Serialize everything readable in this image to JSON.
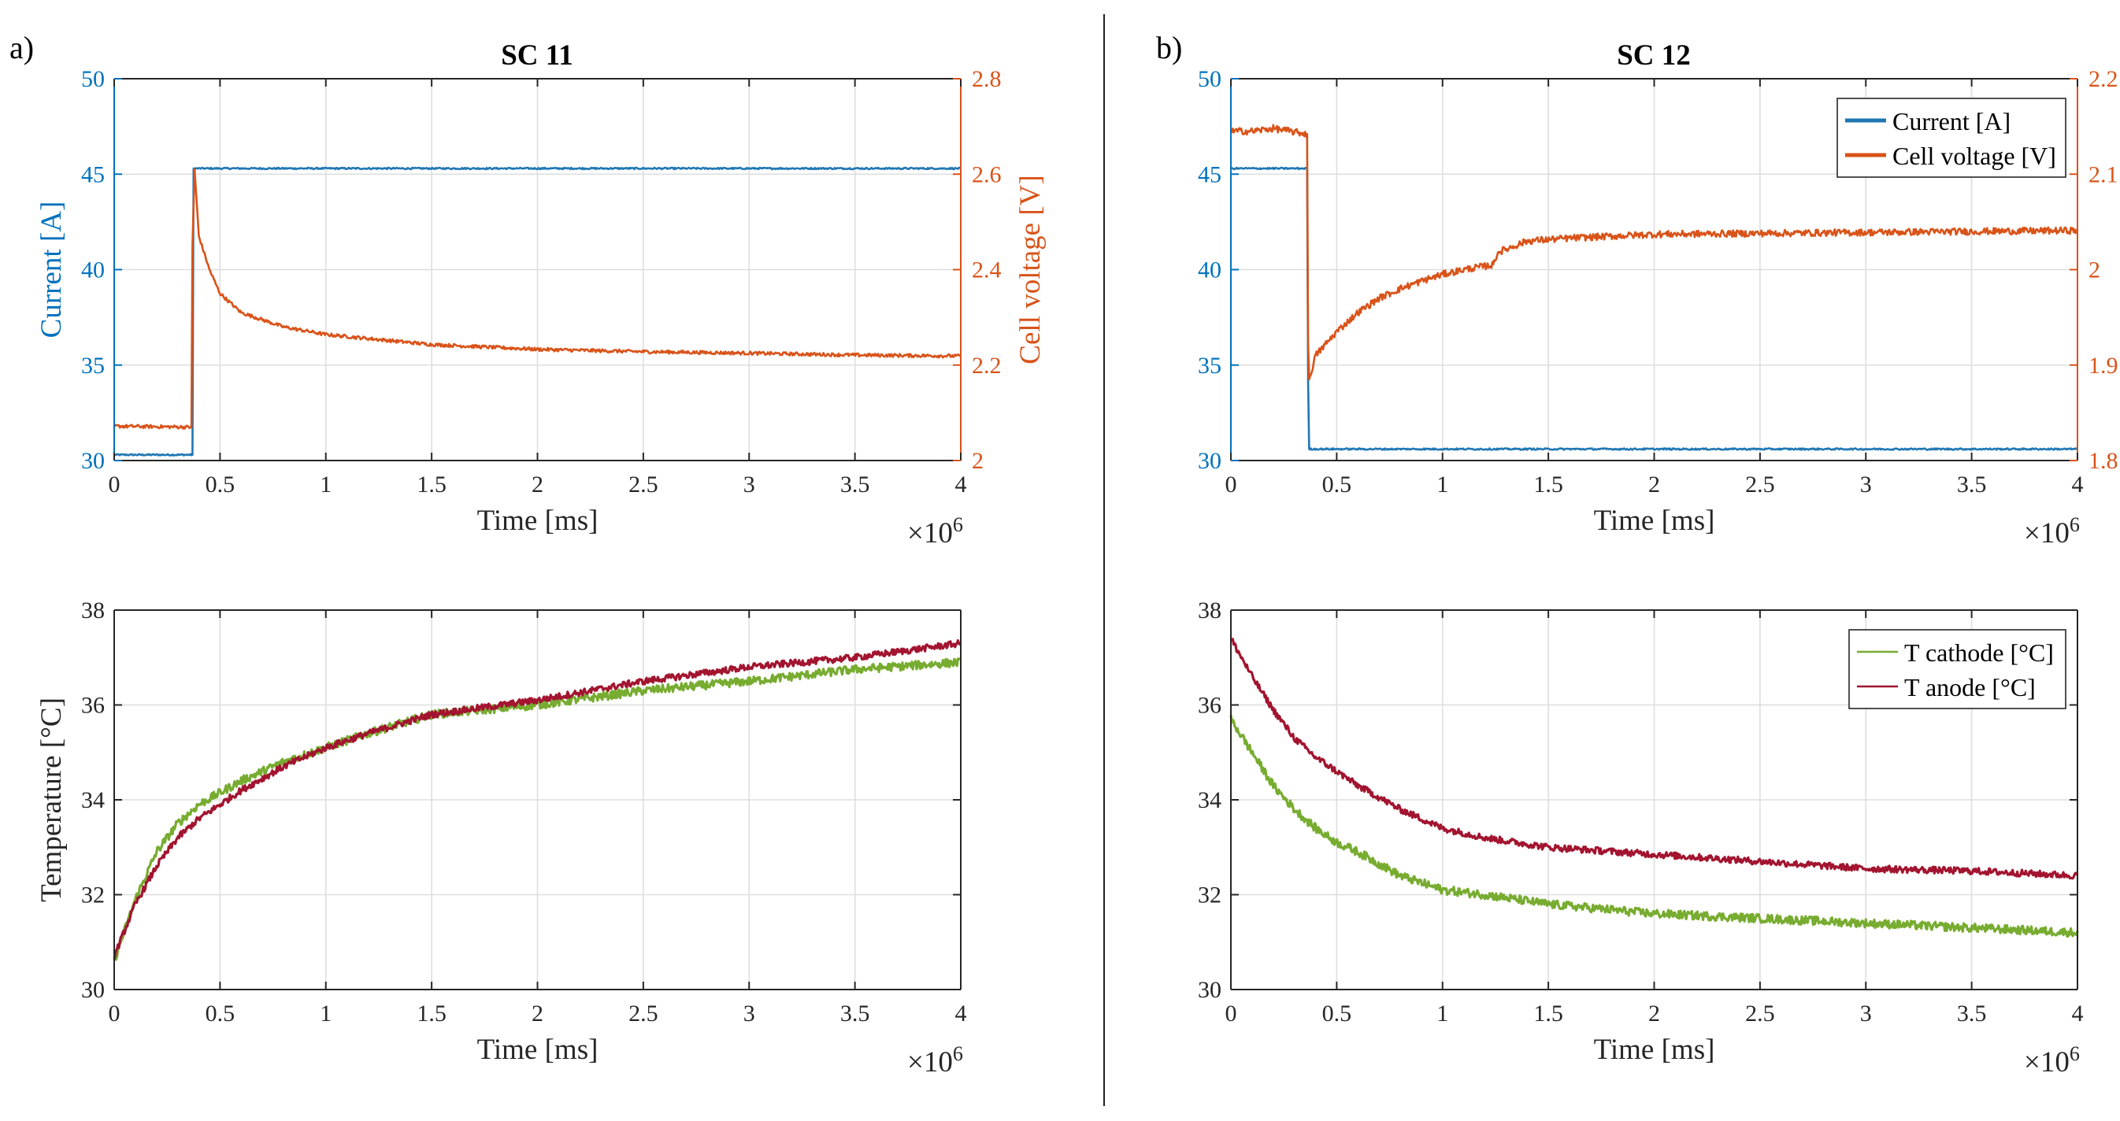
{
  "panel_labels": [
    "a)",
    "b)"
  ],
  "colors": {
    "current": "#1f77b4",
    "voltage": "#d95319",
    "t_cathode": "#77ac30",
    "t_anode": "#a2142f",
    "left_axis_top": "#0072bd",
    "right_axis_top": "#d95319",
    "axis": "#262626"
  },
  "chart_data": [
    {
      "id": "sc11-electrical",
      "type": "line",
      "title": "SC 11",
      "xlabel": "Time [ms]",
      "x_exponent_label": "×10",
      "x_exponent": "6",
      "ylabel": "Current [A]",
      "ylabel_right": "Cell voltage [V]",
      "xlim": [
        0,
        4
      ],
      "ylim": [
        30,
        50
      ],
      "ylim_right": [
        2,
        2.8
      ],
      "xticks": [
        "0",
        "0.5",
        "1",
        "1.5",
        "2",
        "2.5",
        "3",
        "3.5",
        "4"
      ],
      "yticks": [
        "30",
        "35",
        "40",
        "45",
        "50"
      ],
      "yticks_right": [
        "2",
        "2.2",
        "2.4",
        "2.6",
        "2.8"
      ],
      "grid": true,
      "series": [
        {
          "key": "current",
          "axis": "left",
          "color": "#1f77b4",
          "x": [
            0,
            0.37,
            0.375,
            4.0
          ],
          "y": [
            30.3,
            30.3,
            45.3,
            45.3
          ]
        },
        {
          "key": "voltage",
          "axis": "right",
          "color": "#d95319",
          "x": [
            0,
            0.365,
            0.37,
            0.38,
            0.4,
            0.45,
            0.5,
            0.6,
            0.8,
            1.0,
            1.5,
            2.0,
            2.5,
            3.0,
            3.5,
            4.0
          ],
          "y": [
            2.072,
            2.07,
            2.45,
            2.61,
            2.47,
            2.4,
            2.35,
            2.31,
            2.28,
            2.264,
            2.243,
            2.233,
            2.228,
            2.225,
            2.221,
            2.219
          ]
        }
      ]
    },
    {
      "id": "sc11-thermal",
      "type": "line",
      "title": "",
      "xlabel": "Time [ms]",
      "x_exponent_label": "×10",
      "x_exponent": "6",
      "ylabel": "Temperature [°C]",
      "xlim": [
        0,
        4
      ],
      "ylim": [
        30,
        38
      ],
      "xticks": [
        "0",
        "0.5",
        "1",
        "1.5",
        "2",
        "2.5",
        "3",
        "3.5",
        "4"
      ],
      "yticks": [
        "30",
        "32",
        "34",
        "36",
        "38"
      ],
      "grid": true,
      "series": [
        {
          "key": "t_cathode",
          "color": "#77ac30",
          "x": [
            0,
            0.1,
            0.2,
            0.3,
            0.4,
            0.6,
            0.8,
            1.0,
            1.2,
            1.5,
            2.0,
            2.5,
            3.0,
            3.5,
            4.0
          ],
          "y": [
            30.6,
            31.9,
            32.9,
            33.5,
            33.9,
            34.4,
            34.8,
            35.1,
            35.4,
            35.8,
            36.0,
            36.3,
            36.5,
            36.75,
            36.9
          ]
        },
        {
          "key": "t_anode",
          "color": "#a2142f",
          "x": [
            0,
            0.1,
            0.2,
            0.3,
            0.4,
            0.6,
            0.8,
            1.0,
            1.2,
            1.5,
            2.0,
            2.5,
            3.0,
            3.5,
            4.0
          ],
          "y": [
            30.7,
            31.8,
            32.6,
            33.2,
            33.6,
            34.2,
            34.7,
            35.1,
            35.4,
            35.8,
            36.1,
            36.5,
            36.8,
            37.0,
            37.3
          ]
        }
      ]
    },
    {
      "id": "sc12-electrical",
      "type": "line",
      "title": "SC 12",
      "xlabel": "Time [ms]",
      "x_exponent_label": "×10",
      "x_exponent": "6",
      "ylabel": "",
      "ylabel_right": "",
      "xlim": [
        0,
        4
      ],
      "ylim": [
        30,
        50
      ],
      "ylim_right": [
        1.8,
        2.2
      ],
      "xticks": [
        "0",
        "0.5",
        "1",
        "1.5",
        "2",
        "2.5",
        "3",
        "3.5",
        "4"
      ],
      "yticks": [
        "30",
        "35",
        "40",
        "45",
        "50"
      ],
      "yticks_right": [
        "1.8",
        "1.9",
        "2",
        "2.1",
        "2.2"
      ],
      "grid": true,
      "legend": {
        "placement": "top-right",
        "entries": [
          "Current [A]",
          "Cell voltage [V]"
        ]
      },
      "series": [
        {
          "key": "current",
          "name": "Current [A]",
          "axis": "left",
          "color": "#1f77b4",
          "x": [
            0,
            0.36,
            0.365,
            0.37,
            4.0
          ],
          "y": [
            45.3,
            45.3,
            34.0,
            30.6,
            30.6
          ]
        },
        {
          "key": "voltage",
          "name": "Cell voltage [V]",
          "axis": "right",
          "color": "#d95319",
          "x": [
            0,
            0.1,
            0.2,
            0.36,
            0.365,
            0.37,
            0.4,
            0.5,
            0.6,
            0.7,
            0.8,
            0.9,
            1.0,
            1.1,
            1.24,
            1.26,
            1.4,
            1.6,
            2.0,
            2.5,
            3.0,
            3.5,
            4.0
          ],
          "y": [
            2.145,
            2.145,
            2.148,
            2.142,
            1.92,
            1.885,
            1.91,
            1.935,
            1.955,
            1.97,
            1.98,
            1.988,
            1.995,
            2.0,
            2.005,
            2.018,
            2.03,
            2.033,
            2.037,
            2.038,
            2.039,
            2.04,
            2.041
          ]
        }
      ]
    },
    {
      "id": "sc12-thermal",
      "type": "line",
      "title": "",
      "xlabel": "Time [ms]",
      "x_exponent_label": "×10",
      "x_exponent": "6",
      "ylabel": "",
      "xlim": [
        0,
        4
      ],
      "ylim": [
        30,
        38
      ],
      "xticks": [
        "0",
        "0.5",
        "1",
        "1.5",
        "2",
        "2.5",
        "3",
        "3.5",
        "4"
      ],
      "yticks": [
        "30",
        "32",
        "34",
        "36",
        "38"
      ],
      "grid": true,
      "legend": {
        "placement": "top-right",
        "entries": [
          "T cathode [°C]",
          "T anode [°C]"
        ]
      },
      "series": [
        {
          "key": "t_cathode",
          "name": "T cathode [°C]",
          "color": "#77ac30",
          "x": [
            0,
            0.1,
            0.2,
            0.3,
            0.4,
            0.5,
            0.6,
            0.8,
            1.0,
            1.2,
            1.5,
            2.0,
            2.5,
            3.0,
            3.5,
            4.0
          ],
          "y": [
            35.7,
            35.0,
            34.3,
            33.8,
            33.4,
            33.1,
            32.9,
            32.4,
            32.1,
            32.0,
            31.8,
            31.6,
            31.5,
            31.4,
            31.3,
            31.2
          ]
        },
        {
          "key": "t_anode",
          "name": "T anode [°C]",
          "color": "#a2142f",
          "x": [
            0,
            0.1,
            0.2,
            0.3,
            0.4,
            0.5,
            0.6,
            0.8,
            1.0,
            1.2,
            1.5,
            2.0,
            2.5,
            3.0,
            3.5,
            4.0
          ],
          "y": [
            37.4,
            36.6,
            35.9,
            35.3,
            34.9,
            34.6,
            34.3,
            33.8,
            33.4,
            33.2,
            33.0,
            32.85,
            32.7,
            32.55,
            32.5,
            32.4
          ]
        }
      ]
    }
  ]
}
